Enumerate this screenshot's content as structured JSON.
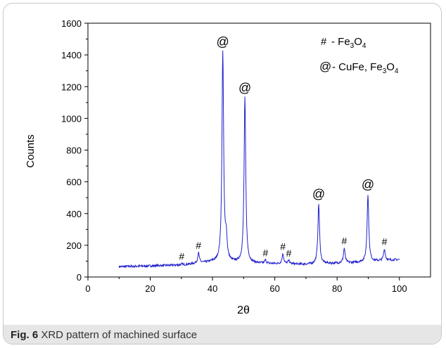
{
  "figure": {
    "label": "Fig. 6",
    "caption": "XRD pattern of machined surface"
  },
  "legend": {
    "entry1": {
      "symbol": "#",
      "text": "- Fe",
      "sub1": "3",
      "mid": "O",
      "sub2": "4"
    },
    "entry2": {
      "symbol": "@",
      "text": "- CuFe, Fe",
      "sub1": "3",
      "mid": "O",
      "sub2": "4"
    }
  },
  "chart_data": {
    "type": "line",
    "title": "",
    "xlabel": "2θ",
    "ylabel": "Counts",
    "xlim": [
      0,
      110
    ],
    "ylim": [
      0,
      1600
    ],
    "xticks": [
      0,
      20,
      40,
      60,
      80,
      100
    ],
    "yticks": [
      0,
      200,
      400,
      600,
      800,
      1000,
      1200,
      1400,
      1600
    ],
    "grid": false,
    "legend_position": "top-right",
    "line_color": "#2222cc",
    "series": [
      {
        "x_range": [
          10,
          100
        ],
        "baseline": [
          [
            10,
            65
          ],
          [
            30,
            75
          ],
          [
            40,
            95
          ],
          [
            55,
            85
          ],
          [
            70,
            80
          ],
          [
            85,
            90
          ],
          [
            100,
            110
          ]
        ],
        "peaks": [
          {
            "x": 30.1,
            "y": 82
          },
          {
            "x": 35.5,
            "y": 150
          },
          {
            "x": 43.3,
            "y": 1420
          },
          {
            "x": 44.4,
            "y": 230
          },
          {
            "x": 50.4,
            "y": 1130
          },
          {
            "x": 57.0,
            "y": 105
          },
          {
            "x": 62.6,
            "y": 145
          },
          {
            "x": 64.5,
            "y": 102
          },
          {
            "x": 74.1,
            "y": 460
          },
          {
            "x": 82.3,
            "y": 180
          },
          {
            "x": 89.9,
            "y": 520
          },
          {
            "x": 95.2,
            "y": 175
          }
        ]
      }
    ],
    "annotations": [
      {
        "text": "#",
        "x": 30.1,
        "y": 82
      },
      {
        "text": "#",
        "x": 35.5,
        "y": 150
      },
      {
        "text": "@",
        "x": 43.3,
        "y": 1420
      },
      {
        "text": "@",
        "x": 50.4,
        "y": 1130
      },
      {
        "text": "#",
        "x": 57.0,
        "y": 105
      },
      {
        "text": "#",
        "x": 62.6,
        "y": 145
      },
      {
        "text": "#",
        "x": 64.5,
        "y": 102
      },
      {
        "text": "@",
        "x": 74.1,
        "y": 460
      },
      {
        "text": "#",
        "x": 82.3,
        "y": 180
      },
      {
        "text": "@",
        "x": 89.9,
        "y": 520
      },
      {
        "text": "#",
        "x": 95.2,
        "y": 175
      }
    ]
  }
}
